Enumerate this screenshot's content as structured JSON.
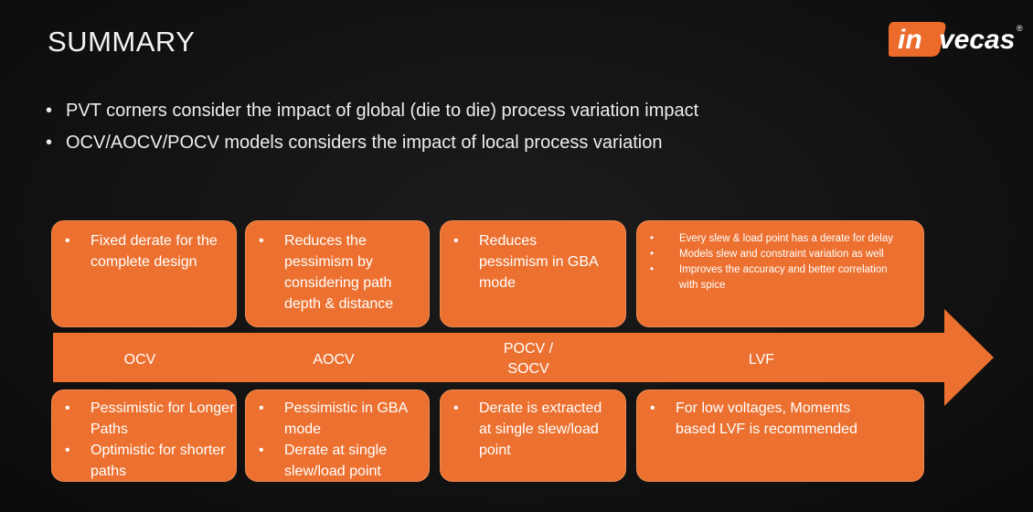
{
  "title": "SUMMARY",
  "logo": {
    "text_in": "in",
    "text_vecas": "vecas",
    "registered": "®",
    "accent_color": "#ec6a2a"
  },
  "bullets": [
    "PVT corners consider the impact of global (die to die) process variation impact",
    "OCV/AOCV/POCV models considers the impact of local process variation"
  ],
  "bullet_glyph": "•",
  "arrow_color": "#ec7130",
  "box_color": "#ec7130",
  "stages": {
    "ocv": "OCV",
    "aocv": "AOCV",
    "pocv_line1": "POCV /",
    "pocv_line2": "SOCV",
    "lvf": "LVF"
  },
  "top_boxes": {
    "ocv": [
      "Fixed derate for the complete design"
    ],
    "aocv": [
      "Reduces the pessimism by considering path depth & distance"
    ],
    "pocv": [
      "Reduces pessimism in GBA mode"
    ],
    "lvf": [
      "Every slew & load point has a derate for delay",
      "Models slew and constraint variation as well",
      "Improves the accuracy and better correlation with spice"
    ]
  },
  "bottom_boxes": {
    "ocv": [
      "Pessimistic for Longer Paths",
      "Optimistic for shorter paths"
    ],
    "aocv": [
      "Pessimistic in GBA mode",
      "Derate at single slew/load point"
    ],
    "pocv": [
      "Derate is extracted at single slew/load point"
    ],
    "lvf": [
      "For low voltages, Moments based LVF is recommended"
    ]
  }
}
